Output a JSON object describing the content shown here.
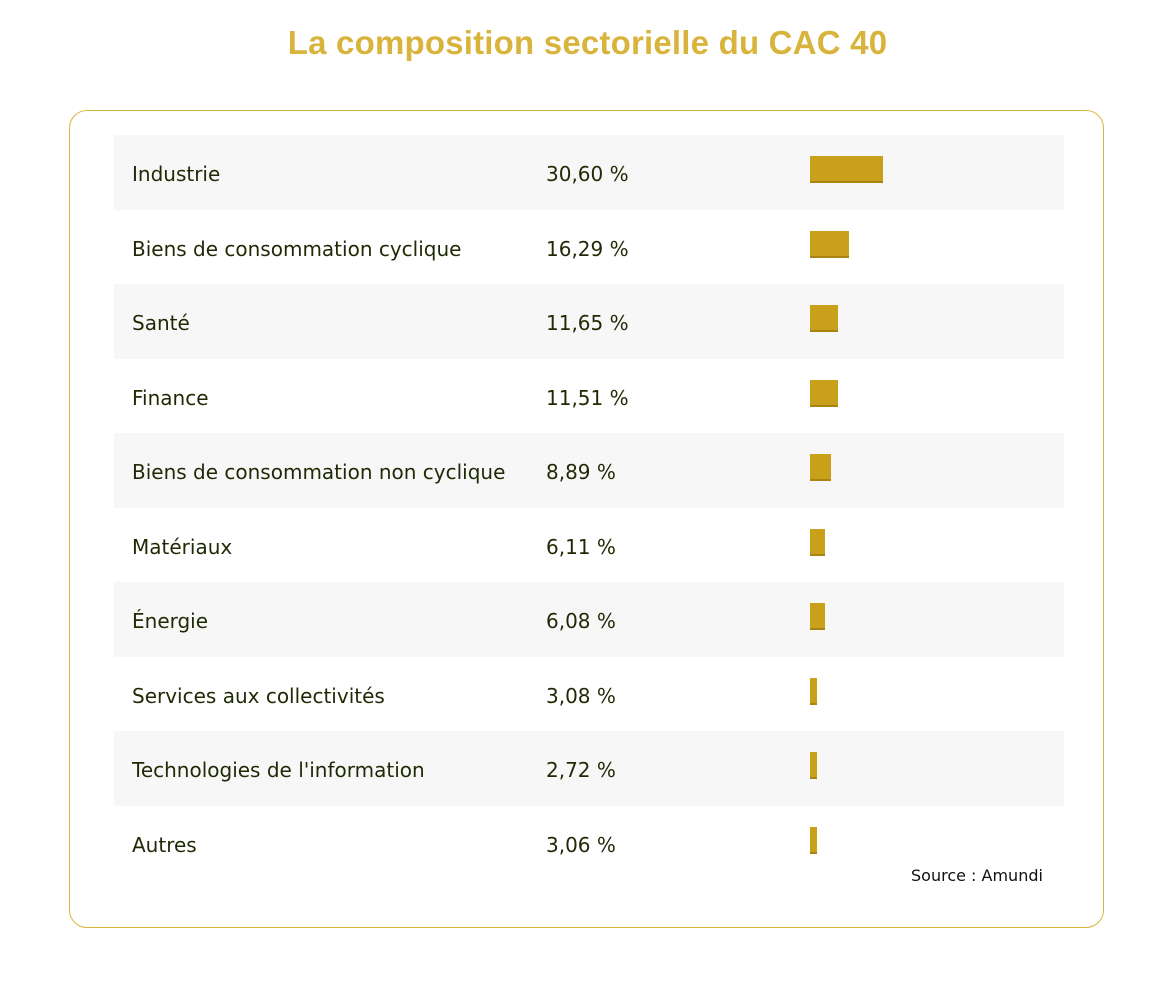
{
  "title": "La composition sectorielle du CAC 40",
  "source": "Source : Amundi",
  "colors": {
    "accent": "#d9b43c",
    "bar": "#c9a01a",
    "text": "#1f2a05",
    "row_shade": "#f7f7f7"
  },
  "chart_data": {
    "type": "bar",
    "title": "La composition sectorielle du CAC 40",
    "orientation": "horizontal",
    "unit": "%",
    "categories": [
      "Industrie",
      "Biens de consommation cyclique",
      "Santé",
      "Finance",
      "Biens de consommation non cyclique",
      "Matériaux",
      "Énergie",
      "Services aux collectivités",
      "Technologies de l'information",
      "Autres"
    ],
    "values": [
      30.6,
      16.29,
      11.65,
      11.51,
      8.89,
      6.11,
      6.08,
      3.08,
      2.72,
      3.06
    ],
    "value_labels": [
      "30,60 %",
      "16,29 %",
      "11,65 %",
      "11,51 %",
      "8,89 %",
      "6,11 %",
      "6,08 %",
      "3,08 %",
      "2,72 %",
      "3,06 %"
    ],
    "grid": false,
    "legend": "none"
  }
}
